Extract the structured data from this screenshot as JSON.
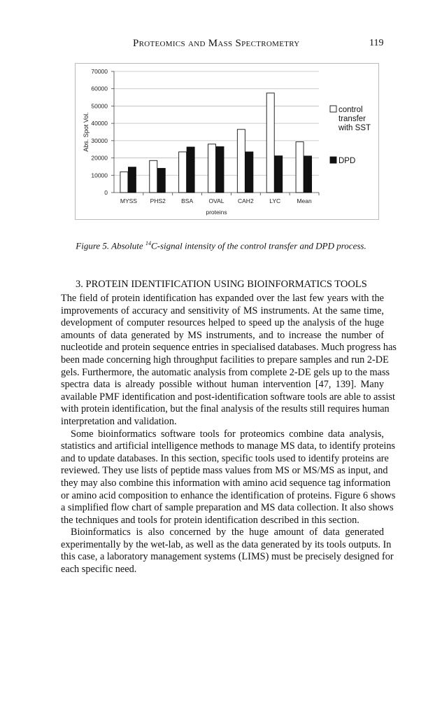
{
  "header": {
    "running_title": "Proteomics and Mass Spectrometry",
    "page_number": "119"
  },
  "chart_data": {
    "type": "bar",
    "title": "",
    "xlabel": "proteins",
    "ylabel": "Abs. Spot Vol.",
    "ylim": [
      0,
      70000
    ],
    "yticks": [
      "0",
      "10000",
      "20000",
      "30000",
      "40000",
      "50000",
      "60000",
      "70000"
    ],
    "grid": true,
    "legend_position": "right",
    "categories": [
      "MYSS",
      "PHS2",
      "BSA",
      "OVAL",
      "CAH2",
      "LYC",
      "Mean"
    ],
    "series": [
      {
        "name": "control transfer with SST",
        "color": "#ffffff",
        "values": [
          12000,
          18500,
          23500,
          28000,
          36500,
          57500,
          29300
        ]
      },
      {
        "name": "DPD",
        "color": "#111111",
        "values": [
          14700,
          14000,
          26300,
          26500,
          23500,
          21200,
          21100
        ]
      }
    ]
  },
  "caption": {
    "prefix": "Figure 5. Absolute ",
    "superscript": "14",
    "suffix": "C-signal intensity of the control transfer and DPD process."
  },
  "section_heading": "3. PROTEIN IDENTIFICATION USING BIOINFORMATICS TOOLS",
  "paragraphs": [
    [
      "The field of protein identification has expanded over the last few years with the",
      "improvements of accuracy and sensitivity of MS instruments. At the same time,",
      "development of computer resources helped to speed up the analysis of the huge",
      "amounts of data generated by MS instruments, and to increase the number of",
      "nucleotide and protein sequence entries in specialised databases. Much progress has",
      "been made concerning high throughput facilities to prepare samples and run 2-DE",
      "gels. Furthermore, the automatic analysis from complete 2-DE gels up to the mass",
      "spectra data is already possible without human intervention [47, 139]. Many",
      "available PMF identification and post-identification software tools are able to assist",
      "with protein identification, but the final analysis of the results still requires human",
      "interpretation and validation."
    ],
    [
      "Some bioinformatics software tools for proteomics combine data analysis,",
      "statistics and artificial intelligence methods to manage MS data, to identify proteins",
      "and to update databases. In this section, specific tools used to identify proteins are",
      "reviewed. They use lists of peptide mass values from MS or MS/MS as input, and",
      "they may also combine this information with amino acid sequence tag information",
      "or amino acid composition to enhance the identification of proteins. Figure 6 shows",
      "a simplified flow chart of sample preparation and MS data collection. It also shows",
      "the techniques and tools for protein identification described in this section."
    ],
    [
      "Bioinformatics is also concerned by the huge amount of data generated",
      "experimentally by the wet-lab, as well as the data generated by its tools outputs. In",
      "this case, a laboratory management systems (LIMS) must be precisely designed for",
      "each specific need."
    ]
  ]
}
